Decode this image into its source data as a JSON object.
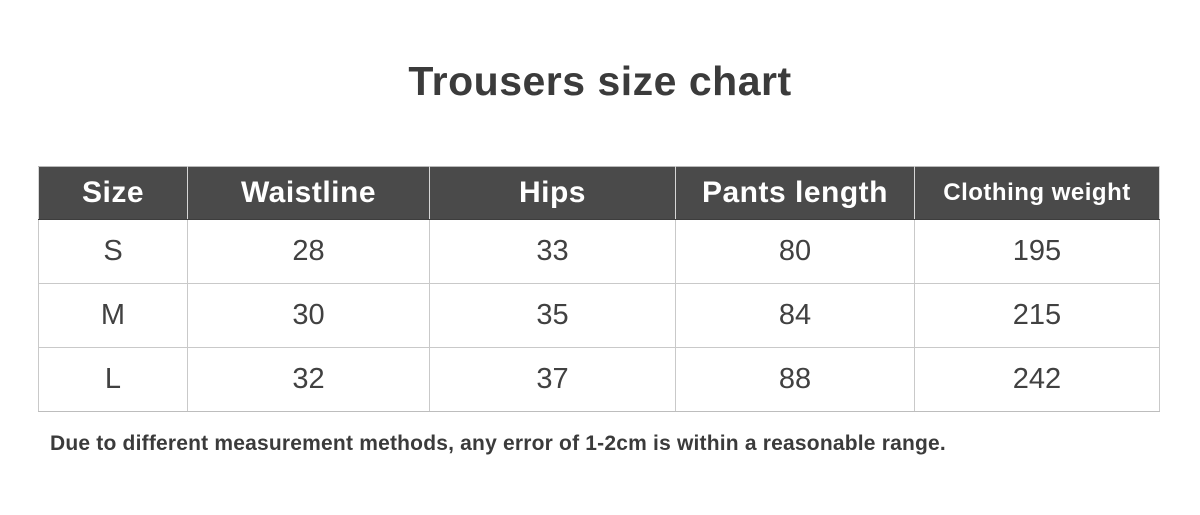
{
  "title": "Trousers size chart",
  "chart_data": {
    "type": "table",
    "title": "Trousers size chart",
    "columns": [
      "Size",
      "Waistline",
      "Hips",
      "Pants length",
      "Clothing weight"
    ],
    "rows": [
      [
        "S",
        "28",
        "33",
        "80",
        "195"
      ],
      [
        "M",
        "30",
        "35",
        "84",
        "215"
      ],
      [
        "L",
        "32",
        "37",
        "88",
        "242"
      ]
    ],
    "footnote": "Due to different measurement methods, any error of 1-2cm is within a reasonable range."
  },
  "table": {
    "columns": [
      {
        "label": "Size"
      },
      {
        "label": "Waistline"
      },
      {
        "label": "Hips"
      },
      {
        "label": "Pants length"
      },
      {
        "label": "Clothing weight"
      }
    ],
    "rows": [
      {
        "cells": [
          "S",
          "28",
          "33",
          "80",
          "195"
        ]
      },
      {
        "cells": [
          "M",
          "30",
          "35",
          "84",
          "215"
        ]
      },
      {
        "cells": [
          "L",
          "32",
          "37",
          "88",
          "242"
        ]
      }
    ]
  },
  "footnote": "Due to different measurement methods, any error of 1-2cm is within a reasonable range.",
  "colors": {
    "header_bg": "#4a4a4a",
    "header_text": "#ffffff",
    "body_text": "#414141",
    "border": "#c9c9c9",
    "page_bg": "#ffffff"
  }
}
